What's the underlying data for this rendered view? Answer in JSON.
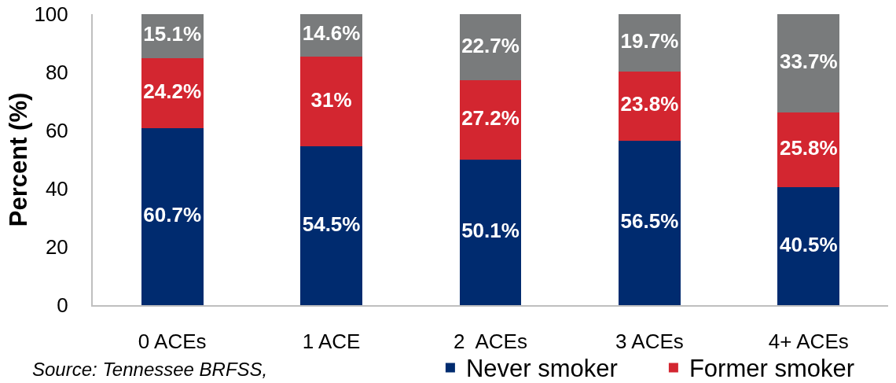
{
  "chart_data": {
    "type": "bar",
    "stacked": true,
    "categories": [
      "0 ACEs",
      "1 ACE",
      "2  ACEs",
      "3 ACEs",
      "4+ ACEs"
    ],
    "series": [
      {
        "name": "Never smoker",
        "color": "#002b6f",
        "values": [
          60.7,
          54.5,
          50.1,
          56.5,
          40.5
        ],
        "value_labels": [
          "60.7%",
          "54.5%",
          "50.1%",
          "56.5%",
          "40.5%"
        ]
      },
      {
        "name": "Former smoker",
        "color": "#d32630",
        "values": [
          24.2,
          31,
          27.2,
          23.8,
          25.8
        ],
        "value_labels": [
          "24.2%",
          "31%",
          "27.2%",
          "23.8%",
          "25.8%"
        ]
      },
      {
        "color": "#797b7c",
        "values": [
          15.1,
          14.6,
          22.7,
          19.7,
          33.7
        ],
        "value_labels": [
          "15.1%",
          "14.6%",
          "22.7%",
          "19.7%",
          "33.7%"
        ]
      }
    ],
    "ylabel": "Percent (%)",
    "ylim": [
      0,
      100
    ],
    "yticks": [
      0,
      20,
      40,
      60,
      80,
      100
    ],
    "legend": "bottom",
    "annotations": [
      "Source: Tennessee BRFSS,"
    ]
  }
}
